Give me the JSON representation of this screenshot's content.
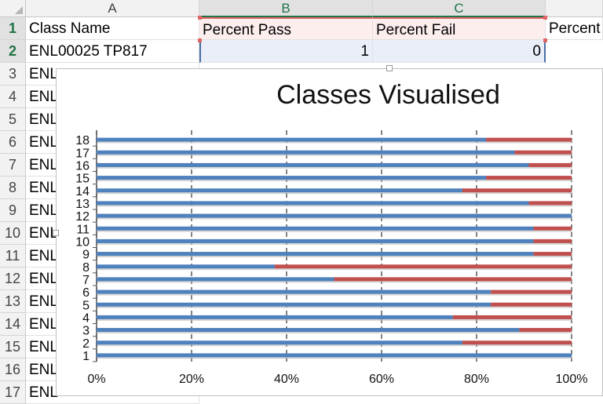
{
  "sheet": {
    "columns": [
      "A",
      "B",
      "C"
    ],
    "rows": [
      "1",
      "2",
      "3",
      "4",
      "5",
      "6",
      "7",
      "8",
      "9",
      "10",
      "11",
      "12",
      "13",
      "14",
      "15",
      "16",
      "17"
    ],
    "header": {
      "class_name": "Class Name",
      "percent_pass": "Percent Pass",
      "percent_fail": "Percent Fail",
      "percent_next": "Percent"
    },
    "row2": {
      "class_name": "ENL00025 TP817",
      "pass": "1",
      "fail": "0"
    },
    "truncated_label": "ENL",
    "colors": {
      "accent": "#217346",
      "pass_series": "#4f81bd",
      "fail_series": "#c0504d"
    }
  },
  "chart_data": {
    "type": "bar",
    "orientation": "horizontal",
    "stacked": "100%",
    "title": "Classes Visualised",
    "categories": [
      "1",
      "2",
      "3",
      "4",
      "5",
      "6",
      "7",
      "8",
      "9",
      "10",
      "11",
      "12",
      "13",
      "14",
      "15",
      "16",
      "17",
      "18"
    ],
    "series": [
      {
        "name": "Percent Pass",
        "color": "#4f81bd",
        "values": [
          1.0,
          0.77,
          0.89,
          0.75,
          0.83,
          0.83,
          0.5,
          0.375,
          0.92,
          0.92,
          0.92,
          1.0,
          0.91,
          0.77,
          0.82,
          0.91,
          0.88,
          0.82
        ]
      },
      {
        "name": "Percent Fail",
        "color": "#c0504d",
        "values": [
          0.0,
          0.23,
          0.11,
          0.25,
          0.17,
          0.17,
          0.5,
          0.625,
          0.08,
          0.08,
          0.08,
          0.0,
          0.09,
          0.23,
          0.18,
          0.09,
          0.12,
          0.18
        ]
      }
    ],
    "xticks": [
      "0%",
      "20%",
      "40%",
      "60%",
      "80%",
      "100%"
    ],
    "xlim": [
      0,
      1
    ],
    "grid": true
  }
}
